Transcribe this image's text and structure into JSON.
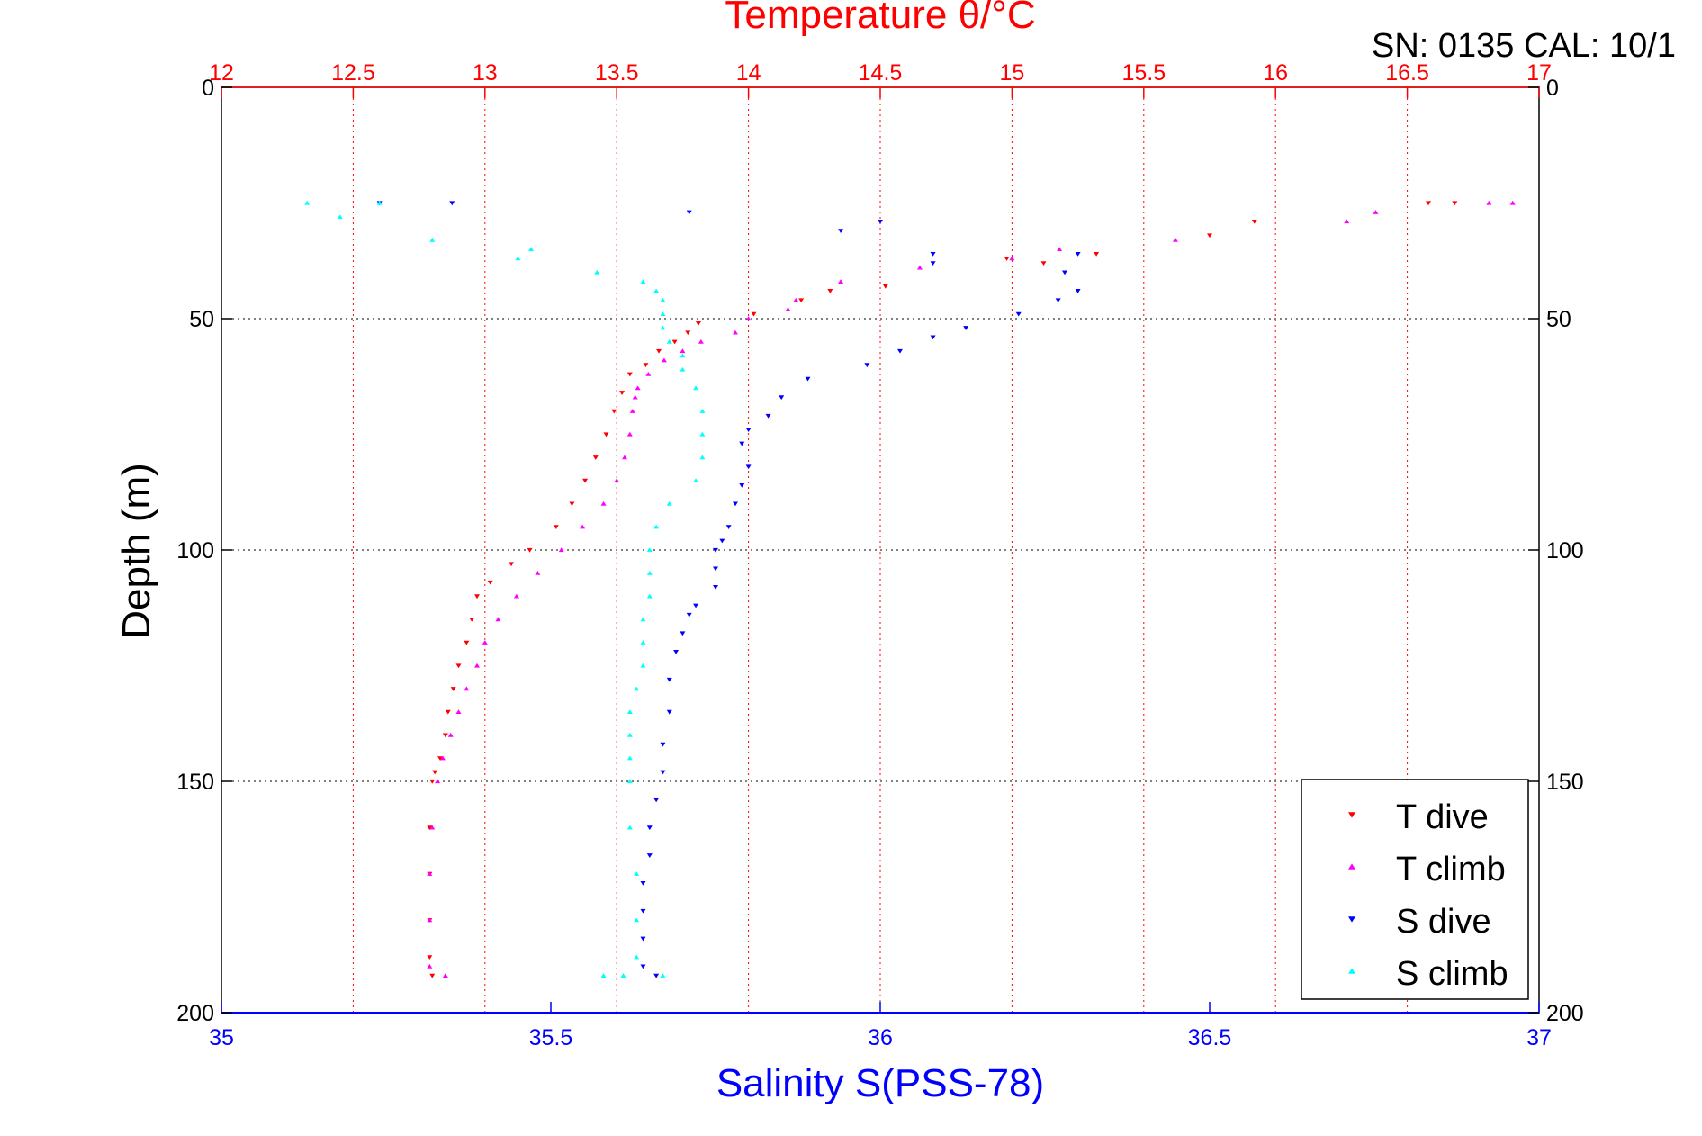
{
  "header": {
    "sn_cal": "SN: 0135  CAL: 10/1"
  },
  "chart_data": {
    "type": "scatter",
    "title": "",
    "top_axis": {
      "label": "Temperature θ/°C",
      "range": [
        12,
        17
      ],
      "ticks": [
        12,
        12.5,
        13,
        13.5,
        14,
        14.5,
        15,
        15.5,
        16,
        16.5,
        17
      ],
      "tick_labels": [
        "12",
        "12.5",
        "13",
        "13.5",
        "14",
        "14.5",
        "15",
        "15.5",
        "16",
        "16.5",
        "17"
      ],
      "color": "#ff0000"
    },
    "bottom_axis": {
      "label": "Salinity S(PSS-78)",
      "range": [
        35,
        37
      ],
      "ticks": [
        35,
        35.5,
        36,
        36.5,
        37
      ],
      "tick_labels": [
        "35",
        "35.5",
        "36",
        "36.5",
        "37"
      ],
      "color": "#0000ff"
    },
    "y_axis": {
      "label": "Depth (m)",
      "range": [
        0,
        200
      ],
      "reversed": true,
      "ticks": [
        0,
        50,
        100,
        150,
        200
      ],
      "tick_labels": [
        "0",
        "50",
        "100",
        "150",
        "200"
      ]
    },
    "grid": {
      "vertical": "temperature-ticks",
      "horizontal": "depth-ticks"
    },
    "legend": {
      "position": "bottom-right",
      "entries": [
        {
          "label": "T dive",
          "color": "#ff0000",
          "marker": "triangle-down"
        },
        {
          "label": "T climb",
          "color": "#ff00ff",
          "marker": "triangle-up"
        },
        {
          "label": "S dive",
          "color": "#0000ff",
          "marker": "triangle-down"
        },
        {
          "label": "S climb",
          "color": "#00ffff",
          "marker": "triangle-up"
        }
      ]
    },
    "series": [
      {
        "name": "T dive",
        "axis": "temperature",
        "color": "#ff0000",
        "marker": "triangle-down",
        "points": [
          [
            16.68,
            25
          ],
          [
            16.58,
            25
          ],
          [
            15.75,
            32
          ],
          [
            15.92,
            29
          ],
          [
            15.32,
            36
          ],
          [
            15.12,
            38
          ],
          [
            14.98,
            37
          ],
          [
            14.52,
            43
          ],
          [
            14.31,
            44
          ],
          [
            14.2,
            46
          ],
          [
            14.02,
            49
          ],
          [
            13.81,
            51
          ],
          [
            13.77,
            53
          ],
          [
            13.72,
            55
          ],
          [
            13.66,
            57
          ],
          [
            13.61,
            60
          ],
          [
            13.55,
            62
          ],
          [
            13.52,
            66
          ],
          [
            13.49,
            70
          ],
          [
            13.46,
            75
          ],
          [
            13.42,
            80
          ],
          [
            13.38,
            85
          ],
          [
            13.33,
            90
          ],
          [
            13.27,
            95
          ],
          [
            13.17,
            100
          ],
          [
            13.1,
            103
          ],
          [
            13.02,
            107
          ],
          [
            12.97,
            110
          ],
          [
            12.95,
            115
          ],
          [
            12.93,
            120
          ],
          [
            12.9,
            125
          ],
          [
            12.88,
            130
          ],
          [
            12.86,
            135
          ],
          [
            12.85,
            140
          ],
          [
            12.83,
            145
          ],
          [
            12.81,
            148
          ],
          [
            12.8,
            150
          ],
          [
            12.79,
            160
          ],
          [
            12.79,
            170
          ],
          [
            12.79,
            180
          ],
          [
            12.79,
            188
          ],
          [
            12.8,
            192
          ]
        ]
      },
      {
        "name": "T climb",
        "axis": "temperature",
        "color": "#ff00ff",
        "marker": "triangle-up",
        "points": [
          [
            16.9,
            25
          ],
          [
            16.81,
            25
          ],
          [
            16.38,
            27
          ],
          [
            16.27,
            29
          ],
          [
            15.62,
            33
          ],
          [
            15.18,
            35
          ],
          [
            15.0,
            37
          ],
          [
            14.65,
            39
          ],
          [
            14.35,
            42
          ],
          [
            14.18,
            46
          ],
          [
            14.15,
            48
          ],
          [
            14.0,
            50
          ],
          [
            13.95,
            53
          ],
          [
            13.82,
            55
          ],
          [
            13.75,
            57
          ],
          [
            13.68,
            59
          ],
          [
            13.62,
            62
          ],
          [
            13.58,
            65
          ],
          [
            13.57,
            67
          ],
          [
            13.56,
            70
          ],
          [
            13.55,
            75
          ],
          [
            13.53,
            80
          ],
          [
            13.5,
            85
          ],
          [
            13.45,
            90
          ],
          [
            13.37,
            95
          ],
          [
            13.29,
            100
          ],
          [
            13.2,
            105
          ],
          [
            13.12,
            110
          ],
          [
            13.05,
            115
          ],
          [
            13.0,
            120
          ],
          [
            12.97,
            125
          ],
          [
            12.93,
            130
          ],
          [
            12.9,
            135
          ],
          [
            12.87,
            140
          ],
          [
            12.84,
            145
          ],
          [
            12.82,
            150
          ],
          [
            12.8,
            160
          ],
          [
            12.79,
            170
          ],
          [
            12.79,
            180
          ],
          [
            12.79,
            190
          ],
          [
            12.85,
            192
          ]
        ]
      },
      {
        "name": "S dive",
        "axis": "salinity",
        "color": "#0000ff",
        "marker": "triangle-down",
        "points": [
          [
            35.24,
            25
          ],
          [
            35.35,
            25
          ],
          [
            35.71,
            27
          ],
          [
            36.0,
            29
          ],
          [
            35.94,
            31
          ],
          [
            36.3,
            36
          ],
          [
            36.08,
            36
          ],
          [
            36.08,
            38
          ],
          [
            36.28,
            40
          ],
          [
            36.3,
            44
          ],
          [
            36.27,
            46
          ],
          [
            36.21,
            49
          ],
          [
            36.13,
            52
          ],
          [
            36.08,
            54
          ],
          [
            36.03,
            57
          ],
          [
            35.98,
            60
          ],
          [
            35.89,
            63
          ],
          [
            35.85,
            67
          ],
          [
            35.83,
            71
          ],
          [
            35.8,
            74
          ],
          [
            35.79,
            77
          ],
          [
            35.8,
            82
          ],
          [
            35.79,
            86
          ],
          [
            35.78,
            90
          ],
          [
            35.77,
            95
          ],
          [
            35.76,
            98
          ],
          [
            35.75,
            100
          ],
          [
            35.75,
            104
          ],
          [
            35.75,
            108
          ],
          [
            35.72,
            112
          ],
          [
            35.71,
            114
          ],
          [
            35.7,
            118
          ],
          [
            35.69,
            122
          ],
          [
            35.68,
            128
          ],
          [
            35.68,
            135
          ],
          [
            35.67,
            142
          ],
          [
            35.67,
            148
          ],
          [
            35.66,
            154
          ],
          [
            35.65,
            160
          ],
          [
            35.65,
            166
          ],
          [
            35.64,
            172
          ],
          [
            35.64,
            178
          ],
          [
            35.64,
            184
          ],
          [
            35.64,
            190
          ],
          [
            35.66,
            192
          ]
        ]
      },
      {
        "name": "S climb",
        "axis": "salinity",
        "color": "#00ffff",
        "marker": "triangle-up",
        "points": [
          [
            35.13,
            25
          ],
          [
            35.18,
            28
          ],
          [
            35.32,
            33
          ],
          [
            35.24,
            25
          ],
          [
            35.47,
            35
          ],
          [
            35.45,
            37
          ],
          [
            35.57,
            40
          ],
          [
            35.64,
            42
          ],
          [
            35.66,
            44
          ],
          [
            35.67,
            46
          ],
          [
            35.67,
            49
          ],
          [
            35.67,
            52
          ],
          [
            35.68,
            55
          ],
          [
            35.7,
            58
          ],
          [
            35.7,
            61
          ],
          [
            35.72,
            65
          ],
          [
            35.73,
            70
          ],
          [
            35.73,
            75
          ],
          [
            35.73,
            80
          ],
          [
            35.72,
            85
          ],
          [
            35.68,
            90
          ],
          [
            35.66,
            95
          ],
          [
            35.65,
            100
          ],
          [
            35.65,
            105
          ],
          [
            35.65,
            110
          ],
          [
            35.64,
            115
          ],
          [
            35.64,
            120
          ],
          [
            35.64,
            125
          ],
          [
            35.63,
            130
          ],
          [
            35.62,
            135
          ],
          [
            35.62,
            140
          ],
          [
            35.62,
            145
          ],
          [
            35.62,
            150
          ],
          [
            35.62,
            160
          ],
          [
            35.63,
            170
          ],
          [
            35.63,
            180
          ],
          [
            35.63,
            188
          ],
          [
            35.58,
            192
          ],
          [
            35.61,
            192
          ],
          [
            35.67,
            192
          ]
        ]
      }
    ]
  }
}
